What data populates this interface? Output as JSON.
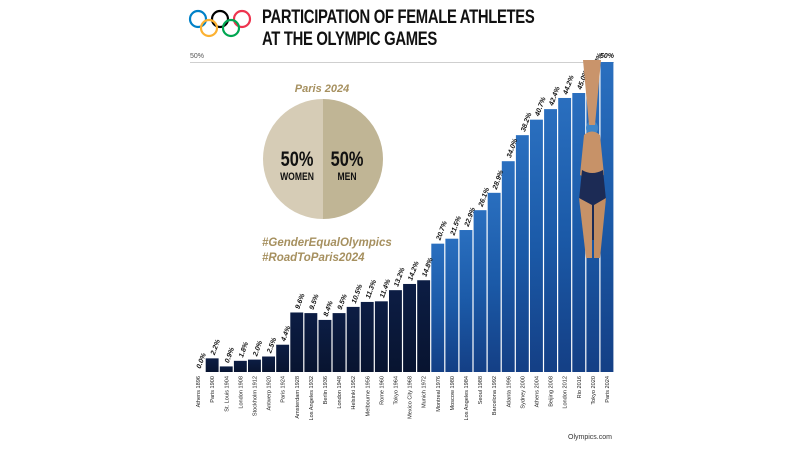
{
  "title_line1": "PARTICIPATION OF FEMALE ATHLETES",
  "title_line2": "AT THE OLYMPIC GAMES",
  "reference_label": "50%",
  "pie": {
    "title": "Paris 2024",
    "women_pct": "50%",
    "women_label": "WOMEN",
    "men_pct": "50%",
    "men_label": "MEN",
    "women_share": 50,
    "men_share": 50,
    "women_color": "#d6ccb6",
    "men_color": "#c0b595"
  },
  "hashtags": [
    "#GenderEqualOlympics",
    "#RoadToParis2024"
  ],
  "source": "Olympics.com",
  "colors": {
    "dark_bar": "#0b1a3a",
    "blue_bar": "#1d5aa6",
    "title": "#111111",
    "accent": "#a6905f"
  },
  "chart_data": {
    "type": "bar",
    "title": "PARTICIPATION OF FEMALE ATHLETES AT THE OLYMPIC GAMES",
    "categories": [
      "Athens 1896",
      "Paris 1900",
      "St. Louis 1904",
      "London 1908",
      "Stockholm 1912",
      "Antwerp 1920",
      "Paris 1924",
      "Amsterdam 1928",
      "Los Angeles 1932",
      "Berlin 1936",
      "London 1948",
      "Helsinki 1952",
      "Melbourne 1956",
      "Rome 1960",
      "Tokyo 1964",
      "Mexico City 1968",
      "Munich 1972",
      "Montreal 1976",
      "Moscow 1980",
      "Los Angeles 1984",
      "Seoul 1988",
      "Barcelona 1992",
      "Atlanta 1996",
      "Sydney 2000",
      "Athens 2004",
      "Beijing 2008",
      "London 2012",
      "Rio 2016",
      "Tokyo 2020",
      "Paris 2024"
    ],
    "values": [
      0.0,
      2.2,
      0.9,
      1.8,
      2.0,
      2.5,
      4.4,
      9.6,
      9.5,
      8.4,
      9.5,
      10.5,
      11.3,
      11.4,
      13.2,
      14.2,
      14.8,
      20.7,
      21.5,
      22.9,
      26.1,
      28.9,
      34.0,
      38.2,
      40.7,
      42.4,
      44.2,
      45.0,
      47.8,
      50.0
    ],
    "value_labels": [
      "0.0%",
      "2.2%",
      "0.9%",
      "1.8%",
      "2.0%",
      "2.5%",
      "4.4%",
      "9.6%",
      "9.5%",
      "8.4%",
      "9.5%",
      "10.5%",
      "11.3%",
      "11.4%",
      "13.2%",
      "14.2%",
      "14.8%",
      "20.7%",
      "21.5%",
      "22.9%",
      "26.1%",
      "28.9%",
      "34.0%",
      "38.2%",
      "40.7%",
      "42.4%",
      "44.2%",
      "45.0%",
      "47.8%",
      "50%"
    ],
    "ylim": [
      0,
      50
    ],
    "reference_line": 50,
    "grid": false,
    "legend": "none"
  }
}
